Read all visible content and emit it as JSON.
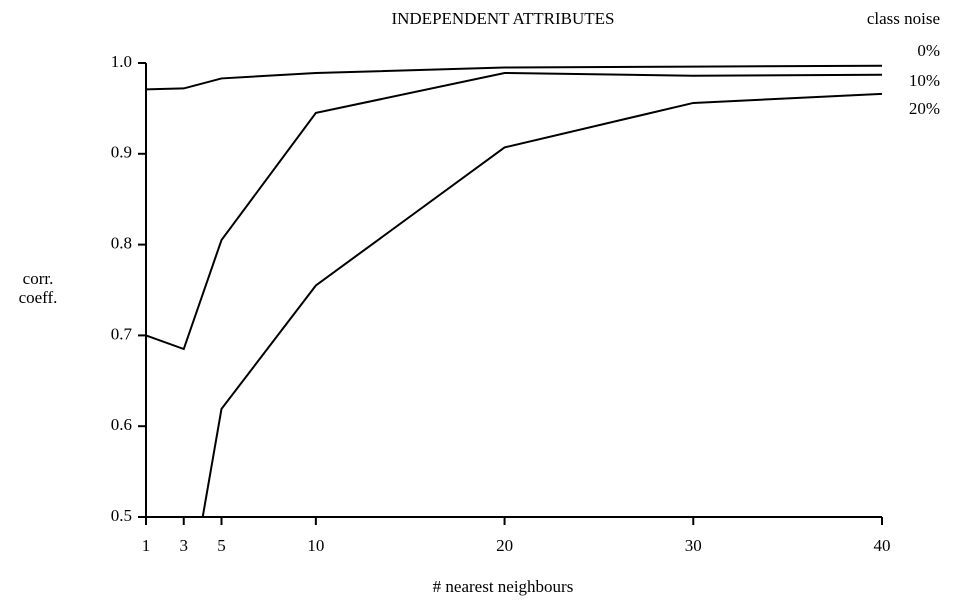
{
  "chart_data": {
    "type": "line",
    "title": "INDEPENDENT ATTRIBUTES",
    "legend_title": "class noise",
    "xlabel": "# nearest neighbours",
    "ylabel": [
      "corr.",
      "coeff."
    ],
    "x": [
      1,
      3,
      5,
      10,
      20,
      30,
      40
    ],
    "series": [
      {
        "name": "0%",
        "color": "#000000",
        "values": [
          0.971,
          0.972,
          0.983,
          0.989,
          0.995,
          0.996,
          0.997
        ]
      },
      {
        "name": "10%",
        "color": "#000000",
        "values": [
          0.7,
          0.685,
          0.805,
          0.945,
          0.989,
          0.986,
          0.987
        ]
      },
      {
        "name": "20%",
        "color": "#000000",
        "values": [
          null,
          0.38,
          0.619,
          0.755,
          0.907,
          0.956,
          0.966
        ]
      }
    ],
    "xlim": [
      1,
      40
    ],
    "ylim": [
      0.5,
      1.0
    ],
    "xticks": [
      1,
      3,
      5,
      10,
      20,
      30,
      40
    ],
    "yticks": [
      0.5,
      0.6,
      0.7,
      0.8,
      0.9,
      {
        "value": 1.0,
        "label": "1.0"
      }
    ],
    "grid": false,
    "legend": "right"
  }
}
